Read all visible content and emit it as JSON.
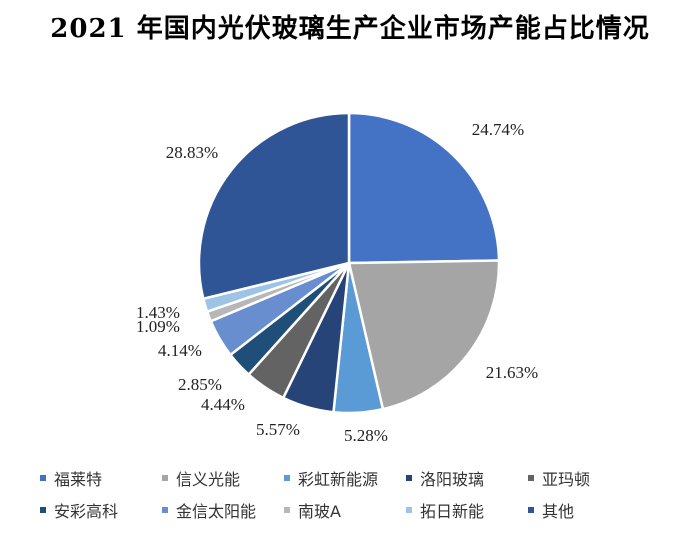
{
  "title": "2021 年国内光伏玻璃生产企业市场产能占比情况",
  "chart_data": {
    "type": "pie",
    "title": "2021 年国内光伏玻璃生产企业市场产能占比情况",
    "legend_position": "bottom",
    "slices": [
      {
        "name": "福莱特",
        "value": 24.74,
        "label": "24.74%",
        "color": "#4472C4"
      },
      {
        "name": "信义光能",
        "value": 21.63,
        "label": "21.63%",
        "color": "#A5A5A5"
      },
      {
        "name": "彩虹新能源",
        "value": 5.28,
        "label": "5.28%",
        "color": "#5B9BD5"
      },
      {
        "name": "洛阳玻璃",
        "value": 5.57,
        "label": "5.57%",
        "color": "#264478"
      },
      {
        "name": "亚玛顿",
        "value": 4.44,
        "label": "4.44%",
        "color": "#636363"
      },
      {
        "name": "安彩高科",
        "value": 2.85,
        "label": "2.85%",
        "color": "#1F4E79"
      },
      {
        "name": "金信太阳能",
        "value": 4.14,
        "label": "4.14%",
        "color": "#698ED0"
      },
      {
        "name": "南玻A",
        "value": 1.09,
        "label": "1.09%",
        "color": "#B7B7B7"
      },
      {
        "name": "拓日新能",
        "value": 1.43,
        "label": "1.43%",
        "color": "#9DC3E6"
      },
      {
        "name": "其他",
        "value": 28.83,
        "label": "28.83%",
        "color": "#2F5597"
      }
    ]
  }
}
